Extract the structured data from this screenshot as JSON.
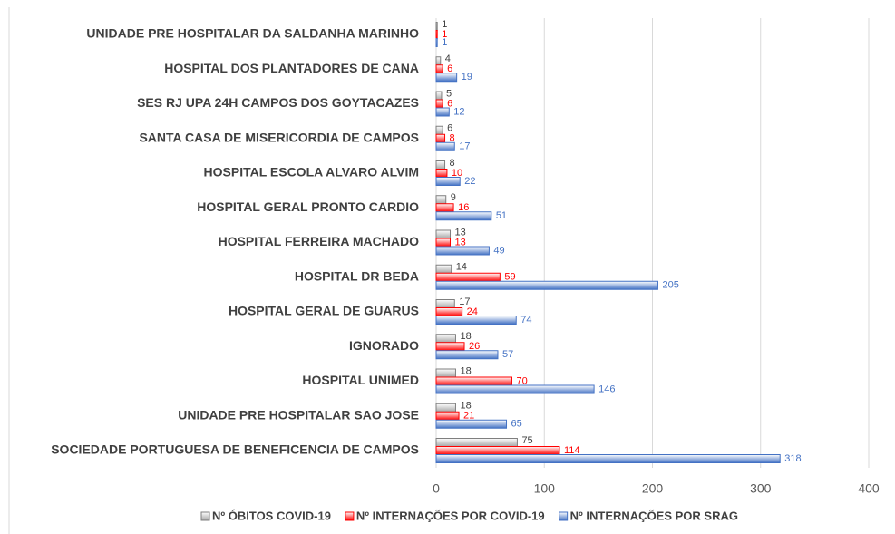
{
  "chart_data": {
    "type": "bar",
    "orientation": "horizontal",
    "categories": [
      "UNIDADE PRE HOSPITALAR DA SALDANHA MARINHO",
      "HOSPITAL DOS PLANTADORES DE CANA",
      "SES RJ UPA 24H CAMPOS DOS GOYTACAZES",
      "SANTA CASA DE MISERICORDIA DE CAMPOS",
      "HOSPITAL ESCOLA ALVARO ALVIM",
      "HOSPITAL GERAL PRONTO CARDIO",
      "HOSPITAL FERREIRA MACHADO",
      "HOSPITAL DR BEDA",
      "HOSPITAL GERAL DE GUARUS",
      "IGNORADO",
      "HOSPITAL UNIMED",
      "UNIDADE PRE HOSPITALAR SAO JOSE",
      "SOCIEDADE PORTUGUESA DE BENEFICENCIA DE CAMPOS"
    ],
    "series": [
      {
        "name": "Nº ÓBITOS COVID-19",
        "color": "#a6a6a6",
        "values": [
          1,
          4,
          5,
          6,
          8,
          9,
          13,
          14,
          17,
          18,
          18,
          18,
          75
        ]
      },
      {
        "name": "Nº INTERNAÇÕES POR COVID-19",
        "color": "#ff0000",
        "values": [
          1,
          6,
          6,
          8,
          10,
          16,
          13,
          59,
          24,
          26,
          70,
          21,
          114
        ]
      },
      {
        "name": "Nº INTERNAÇÕES POR SRAG",
        "color": "#4472c4",
        "values": [
          1,
          19,
          12,
          17,
          22,
          51,
          49,
          205,
          74,
          57,
          146,
          65,
          318
        ]
      }
    ],
    "xlim": [
      0,
      400
    ],
    "xticks": [
      0,
      100,
      200,
      300,
      400
    ],
    "grid": true,
    "legend": "bottom"
  }
}
